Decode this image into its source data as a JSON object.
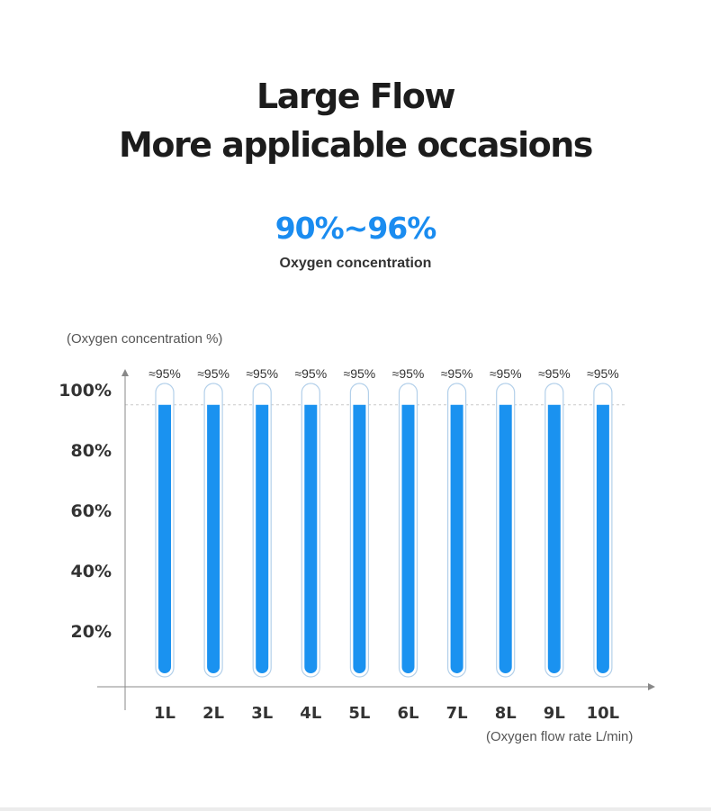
{
  "header": {
    "title_line1": "Large Flow",
    "title_line2": "More applicable occasions",
    "highlight": "90%~96%",
    "highlight_color": "#1a8cf0",
    "subtitle": "Oxygen concentration"
  },
  "colors": {
    "liquid": "#1a92f0",
    "tube_outline": "#b3d0ea",
    "axis": "#888888",
    "reference_line": "#c9c9c9"
  },
  "chart_data": {
    "type": "bar",
    "ylabel": "(Oxygen concentration %)",
    "xlabel": "(Oxygen flow rate L/min)",
    "categories": [
      "1L",
      "2L",
      "3L",
      "4L",
      "5L",
      "6L",
      "7L",
      "8L",
      "9L",
      "10L"
    ],
    "values": [
      95,
      95,
      95,
      95,
      95,
      95,
      95,
      95,
      95,
      95
    ],
    "data_labels": [
      "≈95%",
      "≈95%",
      "≈95%",
      "≈95%",
      "≈95%",
      "≈95%",
      "≈95%",
      "≈95%",
      "≈95%",
      "≈95%"
    ],
    "yticks": [
      20,
      40,
      60,
      80,
      100
    ],
    "ytick_labels": [
      "20%",
      "40%",
      "60%",
      "80%",
      "100%"
    ],
    "ylim": [
      0,
      100
    ],
    "reference_line": 95,
    "grid": false
  }
}
